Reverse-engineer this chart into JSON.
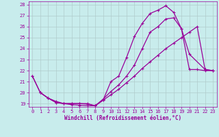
{
  "xlabel": "Windchill (Refroidissement éolien,°C)",
  "background_color": "#c8ecec",
  "grid_color": "#b0cccc",
  "line_color": "#990099",
  "xlim": [
    -0.5,
    23.5
  ],
  "ylim": [
    18.7,
    28.3
  ],
  "yticks": [
    19,
    20,
    21,
    22,
    23,
    24,
    25,
    26,
    27,
    28
  ],
  "xticks": [
    0,
    1,
    2,
    3,
    4,
    5,
    6,
    7,
    8,
    9,
    10,
    11,
    12,
    13,
    14,
    15,
    16,
    17,
    18,
    19,
    20,
    21,
    22,
    23
  ],
  "line1_x": [
    0,
    1,
    2,
    3,
    4,
    5,
    6,
    7,
    8,
    9,
    10,
    11,
    12,
    13,
    14,
    15,
    16,
    17,
    18,
    19,
    20,
    21,
    22,
    23
  ],
  "line1_y": [
    21.5,
    20.0,
    19.5,
    19.1,
    19.0,
    18.9,
    18.85,
    18.8,
    18.8,
    19.3,
    21.0,
    21.5,
    23.2,
    25.1,
    26.3,
    27.2,
    27.5,
    27.9,
    27.3,
    25.8,
    22.1,
    22.1,
    22.0,
    22.0
  ],
  "line2_x": [
    0,
    1,
    2,
    3,
    4,
    5,
    6,
    7,
    8,
    9,
    10,
    11,
    12,
    13,
    14,
    15,
    16,
    17,
    18,
    19,
    20,
    22,
    23
  ],
  "line2_y": [
    21.5,
    20.0,
    19.5,
    19.1,
    19.0,
    19.0,
    19.0,
    19.0,
    18.8,
    19.4,
    20.1,
    20.7,
    21.5,
    22.5,
    24.0,
    25.5,
    26.0,
    26.7,
    26.8,
    25.8,
    23.5,
    22.1,
    22.0
  ],
  "line3_x": [
    1,
    2,
    3,
    4,
    5,
    6,
    7,
    8,
    9,
    10,
    11,
    12,
    13,
    14,
    15,
    16,
    17,
    18,
    19,
    20,
    21,
    22,
    23
  ],
  "line3_y": [
    20.0,
    19.5,
    19.2,
    19.0,
    19.0,
    19.0,
    18.95,
    18.8,
    19.3,
    19.8,
    20.3,
    20.9,
    21.5,
    22.2,
    22.8,
    23.4,
    24.0,
    24.5,
    25.0,
    25.5,
    26.0,
    22.1,
    22.0
  ]
}
